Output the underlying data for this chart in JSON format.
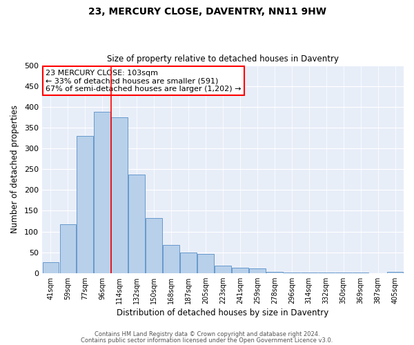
{
  "title": "23, MERCURY CLOSE, DAVENTRY, NN11 9HW",
  "subtitle": "Size of property relative to detached houses in Daventry",
  "xlabel": "Distribution of detached houses by size in Daventry",
  "ylabel": "Number of detached properties",
  "bar_labels": [
    "41sqm",
    "59sqm",
    "77sqm",
    "96sqm",
    "114sqm",
    "132sqm",
    "150sqm",
    "168sqm",
    "187sqm",
    "205sqm",
    "223sqm",
    "241sqm",
    "259sqm",
    "278sqm",
    "296sqm",
    "314sqm",
    "332sqm",
    "350sqm",
    "369sqm",
    "387sqm",
    "405sqm"
  ],
  "bar_values": [
    27,
    118,
    330,
    388,
    375,
    237,
    133,
    68,
    50,
    46,
    18,
    13,
    11,
    3,
    2,
    2,
    2,
    2,
    2,
    0,
    3
  ],
  "bar_color": "#b8d0ea",
  "bar_edge_color": "#6699cc",
  "annotation_line1": "23 MERCURY CLOSE: 103sqm",
  "annotation_line2": "← 33% of detached houses are smaller (591)",
  "annotation_line3": "67% of semi-detached houses are larger (1,202) →",
  "red_line_x": 3.5,
  "ylim": [
    0,
    500
  ],
  "yticks": [
    0,
    50,
    100,
    150,
    200,
    250,
    300,
    350,
    400,
    450,
    500
  ],
  "footnote1": "Contains HM Land Registry data © Crown copyright and database right 2024.",
  "footnote2": "Contains public sector information licensed under the Open Government Licence v3.0.",
  "fig_width": 6.0,
  "fig_height": 5.0,
  "dpi": 100
}
